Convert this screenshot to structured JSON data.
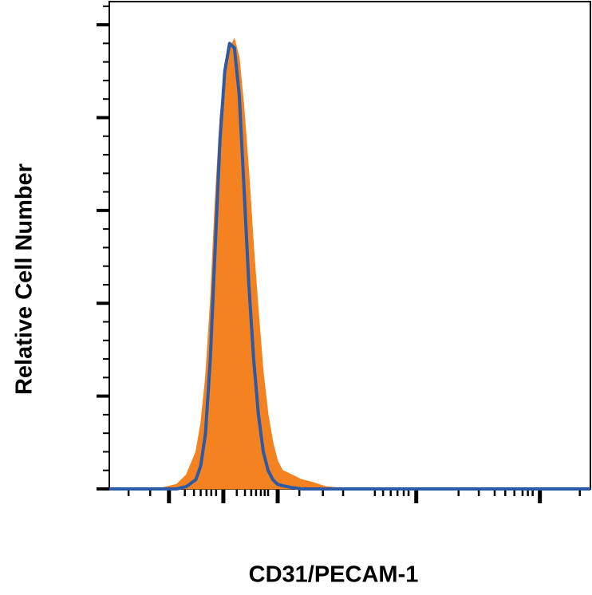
{
  "chart_data": {
    "type": "line",
    "xlabel": "CD31/PECAM-1",
    "ylabel": "Relative Cell Number",
    "x": [
      0,
      10,
      14,
      16,
      18,
      19,
      20,
      21,
      22,
      23,
      24,
      25,
      26,
      27,
      28,
      29,
      30,
      31,
      32,
      33,
      34,
      35,
      36,
      38,
      40,
      42,
      45,
      50,
      100
    ],
    "series": [
      {
        "type": "area",
        "color": "#f58220",
        "values": [
          0,
          0,
          1,
          3,
          8,
          14,
          24,
          40,
          62,
          80,
          90,
          95,
          97,
          93,
          82,
          68,
          52,
          38,
          25,
          16,
          10,
          6,
          4,
          3,
          2,
          1.5,
          0.5,
          0,
          0
        ]
      },
      {
        "type": "line",
        "color": "#2b5aa6",
        "values": [
          0,
          0,
          0,
          0.5,
          2,
          5,
          12,
          28,
          52,
          75,
          90,
          96,
          95,
          85,
          65,
          44,
          28,
          16,
          8,
          4,
          2,
          1,
          0.7,
          0.3,
          0,
          0,
          0,
          0,
          0
        ]
      }
    ],
    "xlim": [
      0,
      100
    ],
    "ylim": [
      0,
      105
    ],
    "xticks": [
      12.4,
      23.7,
      35,
      63.8,
      89.5
    ],
    "xminorticks": [
      4,
      8.5,
      15.7,
      17.6,
      19,
      20.2,
      21.2,
      22.2,
      26.5,
      28.2,
      29.5,
      30.5,
      31.5,
      32.3,
      33,
      39.5,
      44.4,
      48.6,
      55.2,
      56.9,
      58.5,
      59.9,
      61.2,
      62.2,
      72.6,
      76.8,
      80.1,
      82.3,
      84.2,
      85.9,
      87,
      88,
      97.8
    ],
    "yticks": [
      0,
      20,
      40,
      60,
      80,
      100
    ],
    "yminorticks": [
      4,
      8,
      12,
      16,
      24,
      28,
      32,
      36,
      44,
      48,
      52,
      56,
      64,
      68,
      72,
      76,
      84,
      88,
      92,
      96,
      104
    ]
  }
}
